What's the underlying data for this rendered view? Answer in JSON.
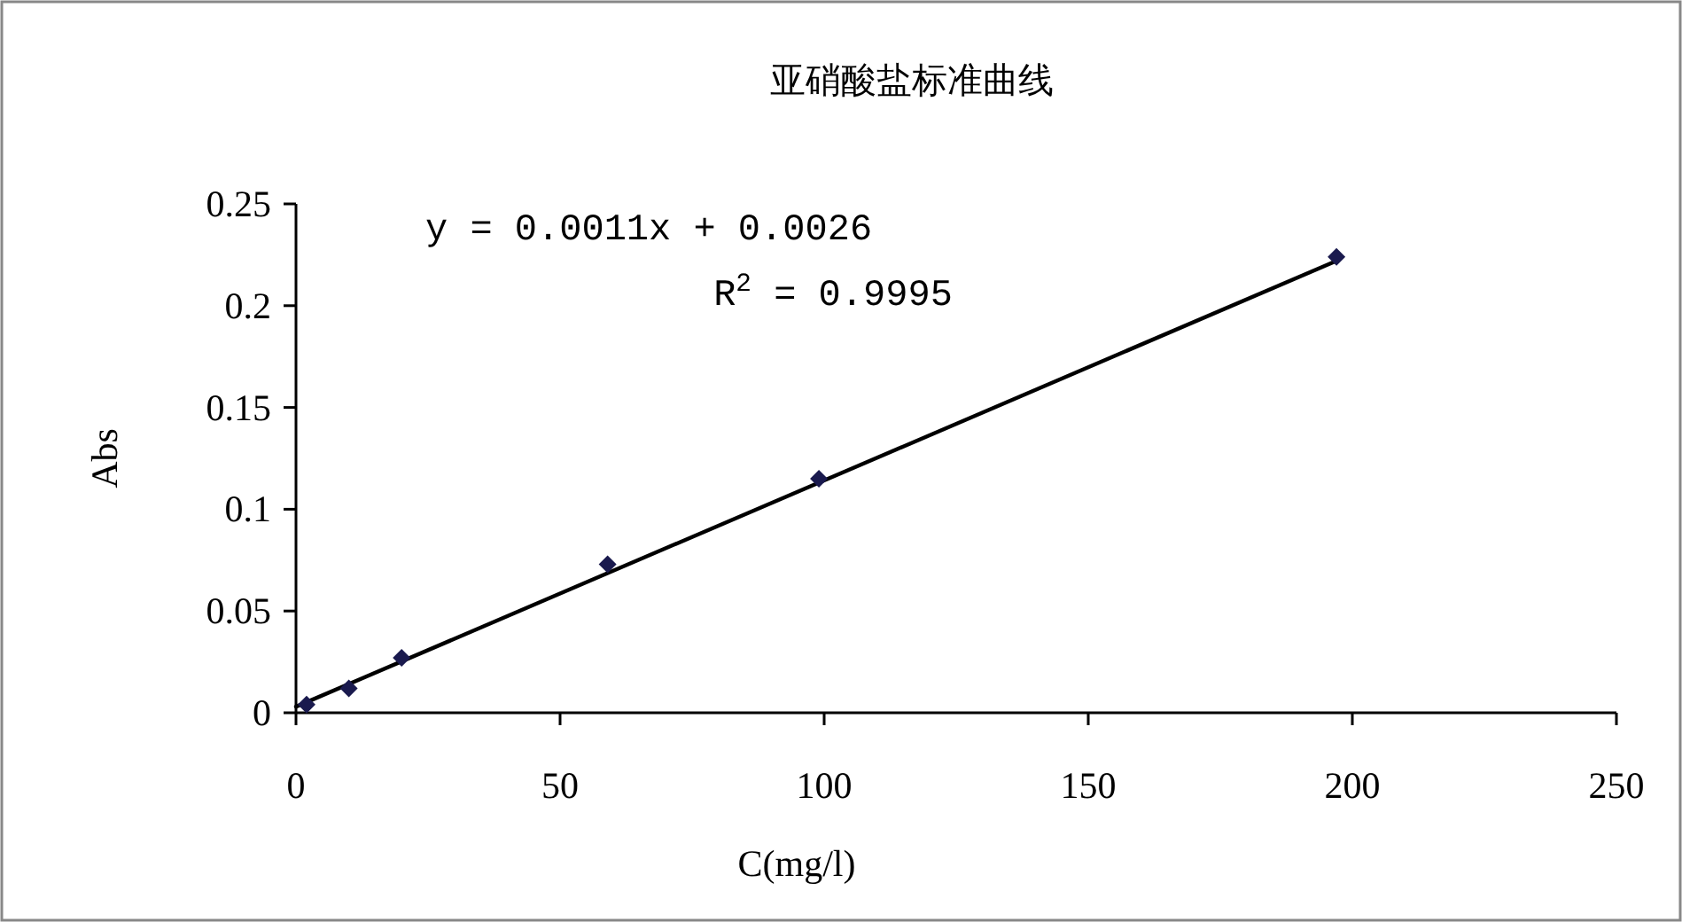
{
  "chart_data": {
    "type": "scatter",
    "title": "亚硝酸盐标准曲线",
    "xlabel": "C(mg/l)",
    "ylabel": "Abs",
    "series": [
      {
        "color": "#1a1a4e",
        "marker": "diamond",
        "x": [
          2,
          10,
          20,
          59,
          99,
          197
        ],
        "values": [
          0.004,
          0.012,
          0.027,
          0.073,
          0.115,
          0.224
        ]
      },
      {
        "type": "line",
        "color": "#000000",
        "marker": "none",
        "line_style": "solid",
        "x": [
          0,
          197
        ],
        "values": [
          0.003,
          0.222
        ]
      }
    ],
    "annotations": [
      "y = 0.0011x + 0.0026",
      "R$^{2}$ = 0.9995"
    ],
    "xlim": [
      0,
      250
    ],
    "xticks": [
      0,
      50,
      100,
      150,
      200,
      250
    ],
    "ylim": [
      0,
      0.25
    ],
    "yticks": [
      0,
      0.05,
      0.1,
      0.15,
      0.2,
      0.25
    ],
    "grid": false
  }
}
